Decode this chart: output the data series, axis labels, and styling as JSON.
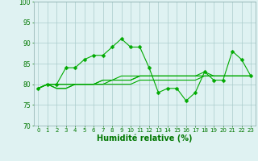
{
  "xlabel": "Humidité relative (%)",
  "x": [
    0,
    1,
    2,
    3,
    4,
    5,
    6,
    7,
    8,
    9,
    10,
    11,
    12,
    13,
    14,
    15,
    16,
    17,
    18,
    19,
    20,
    21,
    22,
    23
  ],
  "series": [
    [
      79,
      80,
      80,
      84,
      84,
      86,
      87,
      87,
      89,
      91,
      89,
      89,
      84,
      78,
      79,
      79,
      76,
      78,
      83,
      81,
      81,
      88,
      86,
      82
    ],
    [
      79,
      80,
      80,
      80,
      80,
      80,
      80,
      81,
      81,
      81,
      81,
      82,
      82,
      82,
      82,
      82,
      82,
      82,
      82,
      82,
      82,
      82,
      82,
      82
    ],
    [
      79,
      80,
      79,
      79,
      80,
      80,
      80,
      80,
      80,
      80,
      80,
      81,
      81,
      81,
      81,
      81,
      81,
      81,
      82,
      82,
      82,
      82,
      82,
      82
    ],
    [
      79,
      80,
      79,
      79,
      80,
      80,
      80,
      80,
      81,
      81,
      81,
      82,
      82,
      82,
      82,
      82,
      82,
      82,
      83,
      82,
      82,
      82,
      82,
      82
    ],
    [
      79,
      80,
      80,
      80,
      80,
      80,
      80,
      81,
      81,
      82,
      82,
      82,
      82,
      82,
      82,
      82,
      82,
      82,
      82,
      82,
      82,
      82,
      82,
      82
    ]
  ],
  "has_markers": [
    true,
    false,
    false,
    false,
    false
  ],
  "marker": "D",
  "marker_size": 2.5,
  "line_width": 0.8,
  "ylim": [
    70,
    100
  ],
  "yticks": [
    70,
    75,
    80,
    85,
    90,
    95,
    100
  ],
  "background_color": "#dff2f2",
  "grid_color": "#aacccc",
  "line_color": "#00aa00",
  "text_color": "#007700",
  "xlabel_fontsize": 7,
  "tick_fontsize": 5
}
